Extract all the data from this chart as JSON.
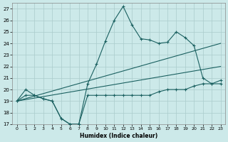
{
  "background_color": "#cce9e9",
  "grid_color": "#aacccc",
  "line_color": "#1a6060",
  "xlabel": "Humidex (Indice chaleur)",
  "xlim": [
    -0.5,
    23.5
  ],
  "ylim": [
    17,
    27.5
  ],
  "yticks": [
    17,
    18,
    19,
    20,
    21,
    22,
    23,
    24,
    25,
    26,
    27
  ],
  "xticks": [
    0,
    1,
    2,
    3,
    4,
    5,
    6,
    7,
    8,
    9,
    10,
    11,
    12,
    13,
    14,
    15,
    16,
    17,
    18,
    19,
    20,
    21,
    22,
    23
  ],
  "line1_x": [
    0,
    1,
    2,
    3,
    4,
    5,
    6,
    7,
    8,
    9,
    10,
    11,
    12,
    13,
    14,
    15,
    16,
    17,
    18,
    19,
    20,
    21,
    22,
    23
  ],
  "line1_y": [
    19.0,
    20.0,
    19.5,
    19.2,
    19.0,
    17.5,
    17.0,
    17.0,
    20.5,
    22.2,
    24.2,
    26.0,
    27.2,
    25.6,
    24.4,
    24.3,
    24.0,
    24.1,
    25.0,
    24.5,
    23.8,
    21.0,
    20.5,
    20.5
  ],
  "line2_x": [
    0,
    1,
    2,
    3,
    4,
    5,
    6,
    7,
    8,
    9,
    10,
    11,
    12,
    13,
    14,
    15,
    16,
    17,
    18,
    19,
    20,
    21,
    22,
    23
  ],
  "line2_y": [
    19.0,
    19.5,
    19.5,
    19.2,
    19.0,
    17.5,
    17.0,
    17.0,
    19.5,
    19.5,
    19.5,
    19.5,
    19.5,
    19.5,
    19.5,
    19.5,
    19.8,
    20.0,
    20.0,
    20.0,
    20.3,
    20.5,
    20.5,
    20.8
  ],
  "line3_x": [
    0,
    23
  ],
  "line3_y": [
    19.0,
    24.0
  ],
  "line4_x": [
    0,
    23
  ],
  "line4_y": [
    19.0,
    22.0
  ]
}
